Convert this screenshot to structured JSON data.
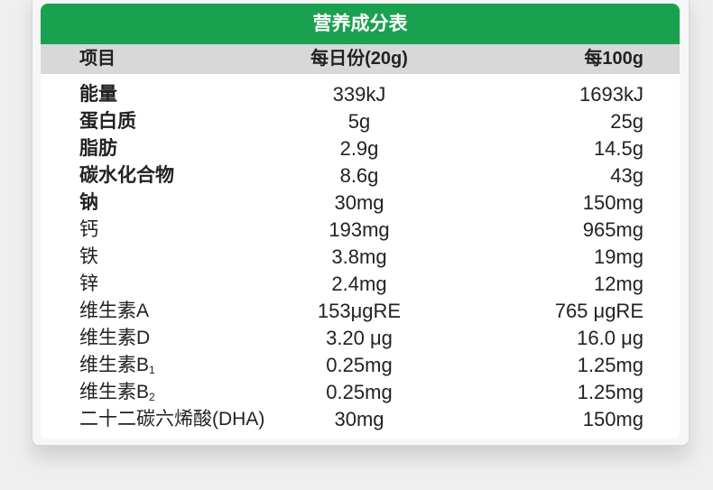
{
  "title": "营养成分表",
  "colors": {
    "header_green": "#1aa150",
    "subheader_gray": "#d8d8d8"
  },
  "columns": [
    "项目",
    "每日份(20g)",
    "每100g"
  ],
  "rows": [
    {
      "name": "能量",
      "per_serving": "339kJ",
      "per_100g": "1693kJ",
      "bold": true
    },
    {
      "name": "蛋白质",
      "per_serving": "5g",
      "per_100g": "25g",
      "bold": true
    },
    {
      "name": "脂肪",
      "per_serving": "2.9g",
      "per_100g": "14.5g",
      "bold": true
    },
    {
      "name": "碳水化合物",
      "per_serving": "8.6g",
      "per_100g": "43g",
      "bold": true
    },
    {
      "name": "钠",
      "per_serving": "30mg",
      "per_100g": "150mg",
      "bold": true
    },
    {
      "name": "钙",
      "per_serving": "193mg",
      "per_100g": "965mg"
    },
    {
      "name": "铁",
      "per_serving": "3.8mg",
      "per_100g": "19mg"
    },
    {
      "name": "锌",
      "per_serving": "2.4mg",
      "per_100g": "12mg"
    },
    {
      "name": "维生素A",
      "per_serving": "153μgRE",
      "per_100g": "765 μgRE"
    },
    {
      "name": "维生素D",
      "per_serving": "3.20 μg",
      "per_100g": "16.0 μg"
    },
    {
      "name": "维生素B",
      "sub": "1",
      "per_serving": "0.25mg",
      "per_100g": "1.25mg"
    },
    {
      "name": "维生素B",
      "sub": "2",
      "per_serving": "0.25mg",
      "per_100g": "1.25mg"
    },
    {
      "name": "二十二碳六烯酸(DHA)",
      "per_serving": "30mg",
      "per_100g": "150mg"
    }
  ]
}
